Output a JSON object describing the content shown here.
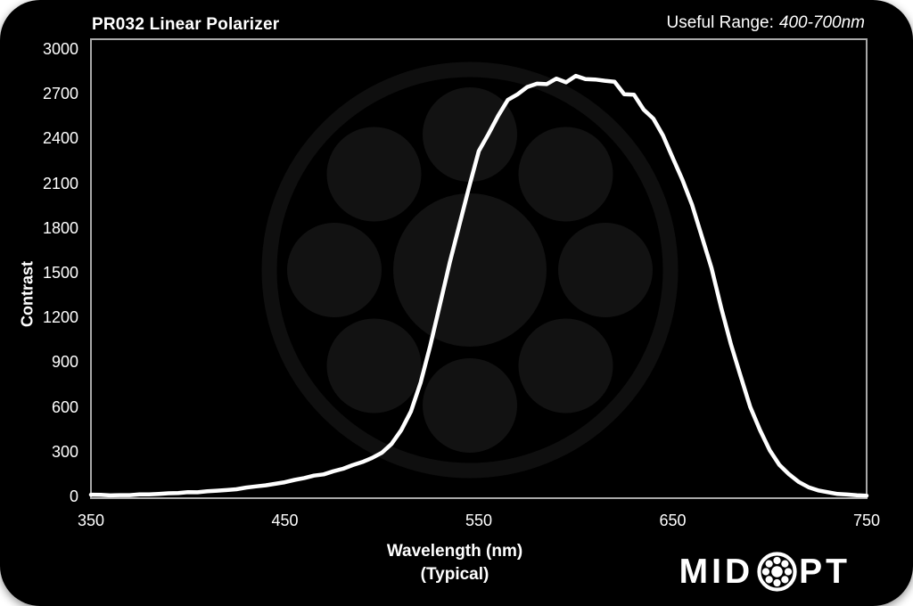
{
  "header": {
    "title": "PR032 Linear Polarizer",
    "useful_range_label": "Useful Range:",
    "useful_range_value": "400-700nm"
  },
  "colors": {
    "background": "#000000",
    "text": "#ffffff",
    "frame": "#a8a8a8",
    "curve": "#ffffff",
    "watermark_fill": "#121212",
    "watermark_ring": "#0f0f0f"
  },
  "chart_data": {
    "type": "line",
    "title": "PR032 Linear Polarizer",
    "xlabel": "Wavelength (nm)",
    "xlabel_note": "(Typical)",
    "ylabel": "Contrast",
    "xlim": [
      350,
      750
    ],
    "ylim": [
      0,
      3000
    ],
    "x_ticks": [
      350,
      450,
      550,
      650,
      750
    ],
    "y_ticks": [
      0,
      300,
      600,
      900,
      1200,
      1500,
      1800,
      2100,
      2400,
      2700,
      3000
    ],
    "grid": false,
    "legend_position": "none",
    "series": [
      {
        "name": "Contrast (typical)",
        "color": "#ffffff",
        "x": [
          350,
          355,
          360,
          365,
          370,
          375,
          380,
          385,
          390,
          395,
          400,
          405,
          410,
          415,
          420,
          425,
          430,
          435,
          440,
          445,
          450,
          455,
          460,
          465,
          470,
          475,
          480,
          485,
          490,
          495,
          500,
          505,
          510,
          515,
          520,
          525,
          530,
          535,
          540,
          545,
          550,
          555,
          560,
          565,
          570,
          575,
          580,
          585,
          590,
          595,
          600,
          605,
          610,
          615,
          620,
          625,
          630,
          635,
          640,
          645,
          650,
          655,
          660,
          665,
          670,
          675,
          680,
          685,
          690,
          695,
          700,
          705,
          710,
          715,
          720,
          725,
          730,
          735,
          740,
          745,
          750
        ],
        "y": [
          8,
          9,
          9,
          10,
          11,
          13,
          14,
          16,
          19,
          21,
          25,
          29,
          33,
          38,
          44,
          51,
          59,
          67,
          76,
          86,
          97,
          109,
          122,
          136,
          151,
          168,
          186,
          207,
          230,
          258,
          295,
          350,
          440,
          575,
          760,
          1000,
          1270,
          1550,
          1830,
          2080,
          2290,
          2450,
          2570,
          2655,
          2710,
          2745,
          2768,
          2782,
          2792,
          2798,
          2800,
          2797,
          2790,
          2776,
          2754,
          2722,
          2680,
          2618,
          2532,
          2422,
          2290,
          2138,
          1958,
          1750,
          1520,
          1278,
          1035,
          805,
          600,
          435,
          308,
          213,
          145,
          97,
          64,
          42,
          27,
          18,
          13,
          10,
          8
        ]
      }
    ],
    "peak": {
      "wavelength": 600,
      "contrast": 2800
    }
  },
  "branding": {
    "logo_text_before": "MID",
    "logo_text_after": "PT",
    "logo_icon": "bearing-icon"
  }
}
